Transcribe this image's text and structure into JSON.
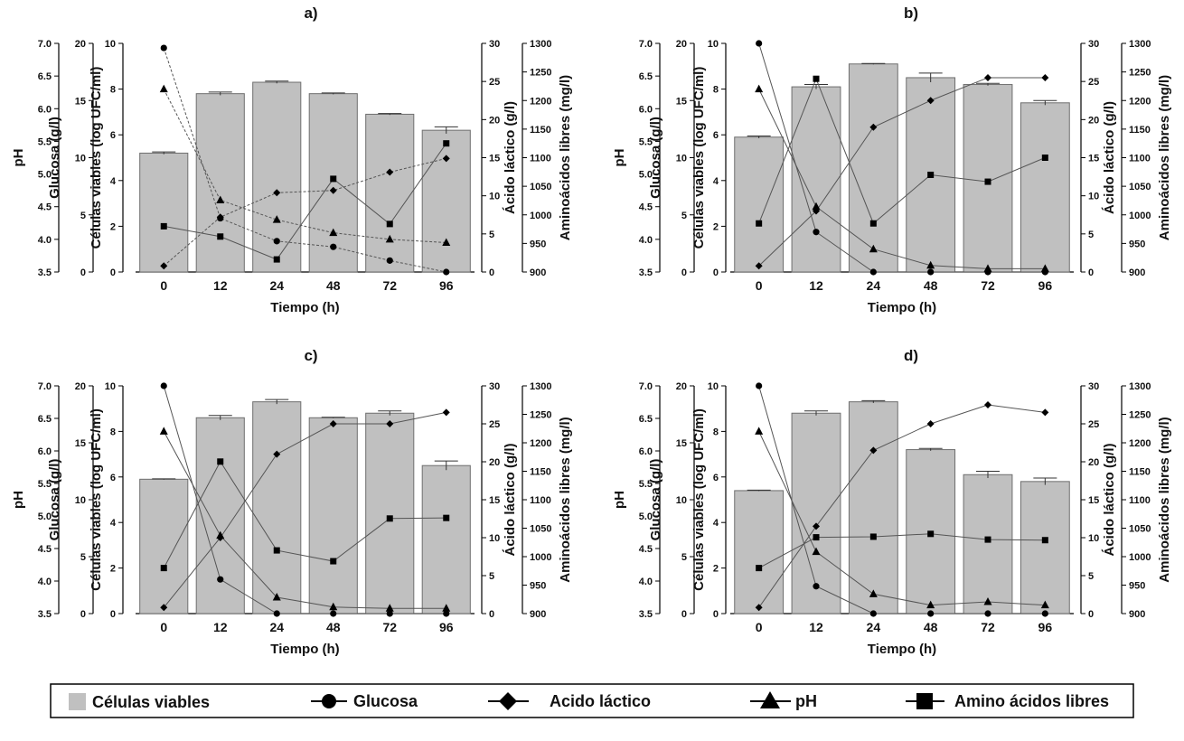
{
  "colors": {
    "bar": "#c0c0c0",
    "bar_stroke": "#6e6e6e",
    "line": "#555555",
    "marker": "#000000"
  },
  "axis_labels": {
    "x": "Tiempo (h)",
    "ph": "pH",
    "glucose": "Glucosa (g/l)",
    "cells": "Células viables (log UFC/ml)",
    "lactic": "Ácido láctico (g/l)",
    "amino": "Aminoácidos libres (mg/l)"
  },
  "legend": {
    "cells": "Células viables",
    "glucose": "Glucosa",
    "lactic": "Acido láctico",
    "ph": "pH",
    "amino": "Amino ácidos libres"
  },
  "chart_data": [
    {
      "type": "bar+line",
      "title": "a)",
      "categories": [
        "0",
        "12",
        "24",
        "48",
        "72",
        "96"
      ],
      "xlabel": "Tiempo (h)",
      "axes": {
        "ph": {
          "label": "pH",
          "ylim": [
            3.5,
            7.0
          ],
          "ticks": [
            "3.5",
            "4.0",
            "4.5",
            "5.0",
            "5.5",
            "6.0",
            "6.5",
            "7.0"
          ]
        },
        "glucose": {
          "label": "Glucosa (g/l)",
          "ylim": [
            0,
            20
          ],
          "ticks": [
            "0",
            "5",
            "10",
            "15",
            "20"
          ]
        },
        "cells": {
          "label": "Células viables (log UFC/ml)",
          "ylim": [
            0,
            10
          ],
          "ticks": [
            "0",
            "2",
            "4",
            "6",
            "8",
            "10"
          ]
        },
        "lactic": {
          "label": "Ácido láctico (g/l)",
          "ylim": [
            0,
            30
          ],
          "ticks": [
            "0",
            "5",
            "10",
            "15",
            "20",
            "25",
            "30"
          ]
        },
        "amino": {
          "label": "Aminoácidos libres (mg/l)",
          "ylim": [
            900,
            1300
          ],
          "ticks": [
            "900",
            "950",
            "1000",
            "1050",
            "1100",
            "1150",
            "1200",
            "1250",
            "1300"
          ]
        }
      },
      "series": [
        {
          "name": "Células viables",
          "kind": "bar",
          "axis": "cells",
          "values": [
            5.2,
            7.8,
            8.3,
            7.8,
            6.9,
            6.2
          ],
          "errors": [
            0.05,
            0.07,
            0.05,
            0.03,
            0.03,
            0.15
          ]
        },
        {
          "name": "Glucosa",
          "kind": "line",
          "marker": "circle",
          "axis": "glucose",
          "values": [
            19.6,
            4.7,
            2.7,
            2.2,
            1.0,
            0.0
          ]
        },
        {
          "name": "Acido láctico",
          "kind": "line",
          "marker": "diamond",
          "axis": "lactic",
          "values": [
            0.8,
            7.2,
            10.4,
            10.7,
            13.1,
            14.9
          ]
        },
        {
          "name": "pH",
          "kind": "line",
          "marker": "triangle",
          "axis": "ph",
          "values": [
            6.3,
            4.6,
            4.3,
            4.1,
            4.0,
            3.95
          ]
        },
        {
          "name": "Amino ácidos libres",
          "kind": "line",
          "marker": "square",
          "axis": "amino",
          "values": [
            980,
            962,
            922,
            1063,
            984,
            1125
          ]
        }
      ]
    },
    {
      "type": "bar+line",
      "title": "b)",
      "categories": [
        "0",
        "12",
        "24",
        "48",
        "72",
        "96"
      ],
      "xlabel": "Tiempo (h)",
      "axes": {
        "ph": {
          "label": "pH",
          "ylim": [
            3.5,
            7.0
          ],
          "ticks": [
            "3.5",
            "4.0",
            "4.5",
            "5.0",
            "5.5",
            "6.0",
            "6.5",
            "7.0"
          ]
        },
        "glucose": {
          "label": "Glucosa (g/l)",
          "ylim": [
            0,
            20
          ],
          "ticks": [
            "0",
            "5",
            "10",
            "15",
            "20"
          ]
        },
        "cells": {
          "label": "Células viables (log UFC/ml)",
          "ylim": [
            0,
            10
          ],
          "ticks": [
            "0",
            "2",
            "4",
            "6",
            "8",
            "10"
          ]
        },
        "lactic": {
          "label": "Ácido láctico (g/l)",
          "ylim": [
            0,
            30
          ],
          "ticks": [
            "0",
            "5",
            "10",
            "15",
            "20",
            "25",
            "30"
          ]
        },
        "amino": {
          "label": "Aminoácidos libres (mg/l)",
          "ylim": [
            900,
            1300
          ],
          "ticks": [
            "900",
            "950",
            "1000",
            "1050",
            "1100",
            "1150",
            "1200",
            "1250",
            "1300"
          ]
        }
      },
      "series": [
        {
          "name": "Células viables",
          "kind": "bar",
          "axis": "cells",
          "values": [
            5.9,
            8.1,
            9.1,
            8.5,
            8.2,
            7.4
          ],
          "errors": [
            0.05,
            0.1,
            0.02,
            0.2,
            0.05,
            0.1
          ]
        },
        {
          "name": "Glucosa",
          "kind": "line",
          "marker": "circle",
          "axis": "glucose",
          "values": [
            20.0,
            3.5,
            0.0,
            0.0,
            0.0,
            0.0
          ]
        },
        {
          "name": "Acido láctico",
          "kind": "line",
          "marker": "diamond",
          "axis": "lactic",
          "values": [
            0.8,
            8.0,
            19.0,
            22.5,
            25.5,
            25.5
          ]
        },
        {
          "name": "pH",
          "kind": "line",
          "marker": "triangle",
          "axis": "ph",
          "values": [
            6.3,
            4.5,
            3.85,
            3.6,
            3.55,
            3.55
          ]
        },
        {
          "name": "Amino ácidos libres",
          "kind": "line",
          "marker": "square",
          "axis": "amino",
          "values": [
            985,
            1238,
            985,
            1070,
            1058,
            1100
          ]
        }
      ]
    },
    {
      "type": "bar+line",
      "title": "c)",
      "categories": [
        "0",
        "12",
        "24",
        "48",
        "72",
        "96"
      ],
      "xlabel": "Tiempo (h)",
      "axes": {
        "ph": {
          "label": "pH",
          "ylim": [
            3.5,
            7.0
          ],
          "ticks": [
            "3.5",
            "4.0",
            "4.5",
            "5.0",
            "5.5",
            "6.0",
            "6.5",
            "7.0"
          ]
        },
        "glucose": {
          "label": "Glucosa (g/l)",
          "ylim": [
            0,
            20
          ],
          "ticks": [
            "0",
            "5",
            "10",
            "15",
            "20"
          ]
        },
        "cells": {
          "label": "Células viables (log UFC/ml)",
          "ylim": [
            0,
            10
          ],
          "ticks": [
            "0",
            "2",
            "4",
            "6",
            "8",
            "10"
          ]
        },
        "lactic": {
          "label": "Ácido láctico (g/l)",
          "ylim": [
            0,
            30
          ],
          "ticks": [
            "0",
            "5",
            "10",
            "15",
            "20",
            "25",
            "30"
          ]
        },
        "amino": {
          "label": "Aminoácidos libres (mg/l)",
          "ylim": [
            900,
            1300
          ],
          "ticks": [
            "900",
            "950",
            "1000",
            "1050",
            "1100",
            "1150",
            "1200",
            "1250",
            "1300"
          ]
        }
      },
      "series": [
        {
          "name": "Células viables",
          "kind": "bar",
          "axis": "cells",
          "values": [
            5.9,
            8.6,
            9.3,
            8.6,
            8.8,
            6.5
          ],
          "errors": [
            0.02,
            0.1,
            0.1,
            0.02,
            0.1,
            0.2
          ]
        },
        {
          "name": "Glucosa",
          "kind": "line",
          "marker": "circle",
          "axis": "glucose",
          "values": [
            20.0,
            3.0,
            0.0,
            0.0,
            0.0,
            0.0
          ]
        },
        {
          "name": "Acido láctico",
          "kind": "line",
          "marker": "diamond",
          "axis": "lactic",
          "values": [
            0.8,
            10.0,
            21.0,
            25.0,
            25.0,
            26.5
          ]
        },
        {
          "name": "pH",
          "kind": "line",
          "marker": "triangle",
          "axis": "ph",
          "values": [
            6.3,
            4.7,
            3.75,
            3.6,
            3.58,
            3.58
          ]
        },
        {
          "name": "Amino ácidos libres",
          "kind": "line",
          "marker": "square",
          "axis": "amino",
          "values": [
            980,
            1167,
            1011,
            992,
            1067,
            1068
          ]
        }
      ]
    },
    {
      "type": "bar+line",
      "title": "d)",
      "categories": [
        "0",
        "12",
        "24",
        "48",
        "72",
        "96"
      ],
      "xlabel": "Tiempo (h)",
      "axes": {
        "ph": {
          "label": "pH",
          "ylim": [
            3.5,
            7.0
          ],
          "ticks": [
            "3.5",
            "4.0",
            "4.5",
            "5.0",
            "5.5",
            "6.0",
            "6.5",
            "7.0"
          ]
        },
        "glucose": {
          "label": "Glucosa (g/l)",
          "ylim": [
            0,
            20
          ],
          "ticks": [
            "0",
            "5",
            "10",
            "15",
            "20"
          ]
        },
        "cells": {
          "label": "Células viables (log UFC/ml)",
          "ylim": [
            0,
            10
          ],
          "ticks": [
            "0",
            "2",
            "4",
            "6",
            "8",
            "10"
          ]
        },
        "lactic": {
          "label": "Ácido láctico (g/l)",
          "ylim": [
            0,
            30
          ],
          "ticks": [
            "0",
            "5",
            "10",
            "15",
            "20",
            "25",
            "30"
          ]
        },
        "amino": {
          "label": "Aminoácidos libres (mg/l)",
          "ylim": [
            900,
            1300
          ],
          "ticks": [
            "900",
            "950",
            "1000",
            "1050",
            "1100",
            "1150",
            "1200",
            "1250",
            "1300"
          ]
        }
      },
      "series": [
        {
          "name": "Células viables",
          "kind": "bar",
          "axis": "cells",
          "values": [
            5.4,
            8.8,
            9.3,
            7.2,
            6.1,
            5.8
          ],
          "errors": [
            0.02,
            0.1,
            0.05,
            0.05,
            0.15,
            0.15
          ]
        },
        {
          "name": "Glucosa",
          "kind": "line",
          "marker": "circle",
          "axis": "glucose",
          "values": [
            20.0,
            2.4,
            0.0,
            0.0,
            0.0,
            0.0
          ]
        },
        {
          "name": "Acido láctico",
          "kind": "line",
          "marker": "diamond",
          "axis": "lactic",
          "values": [
            0.8,
            11.5,
            21.5,
            25.0,
            27.5,
            26.5
          ]
        },
        {
          "name": "pH",
          "kind": "line",
          "marker": "triangle",
          "axis": "ph",
          "values": [
            6.3,
            4.45,
            3.8,
            3.63,
            3.68,
            3.63
          ]
        },
        {
          "name": "Amino ácidos libres",
          "kind": "line",
          "marker": "square",
          "axis": "amino",
          "values": [
            980,
            1034,
            1035,
            1040,
            1030,
            1029
          ]
        }
      ]
    }
  ]
}
